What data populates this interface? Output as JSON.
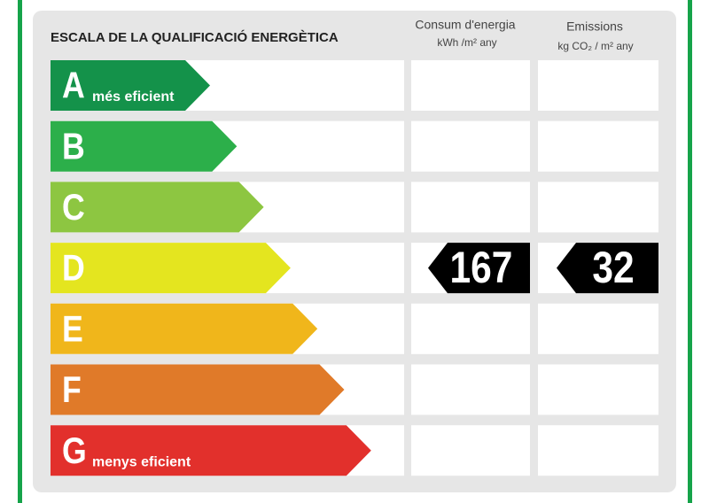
{
  "title": "ESCALA DE LA QUALIFICACIÓ ENERGÈTICA",
  "columns": [
    {
      "label": "Consum d'energia",
      "unit": "kWh /m² any"
    },
    {
      "label": "Emissions",
      "unit": "kg CO₂ / m² any"
    }
  ],
  "grades": [
    {
      "letter": "A",
      "note": "més eficient",
      "color": "#14924a"
    },
    {
      "letter": "B",
      "color": "#2caf4a"
    },
    {
      "letter": "C",
      "color": "#8dc641"
    },
    {
      "letter": "D",
      "color": "#e4e51f"
    },
    {
      "letter": "E",
      "color": "#f0b61b"
    },
    {
      "letter": "F",
      "color": "#e07a29"
    },
    {
      "letter": "G",
      "note": "menys eficient",
      "color": "#e2302c"
    }
  ],
  "rating": {
    "grade": "D",
    "consumption": 167,
    "emissions": 32
  }
}
